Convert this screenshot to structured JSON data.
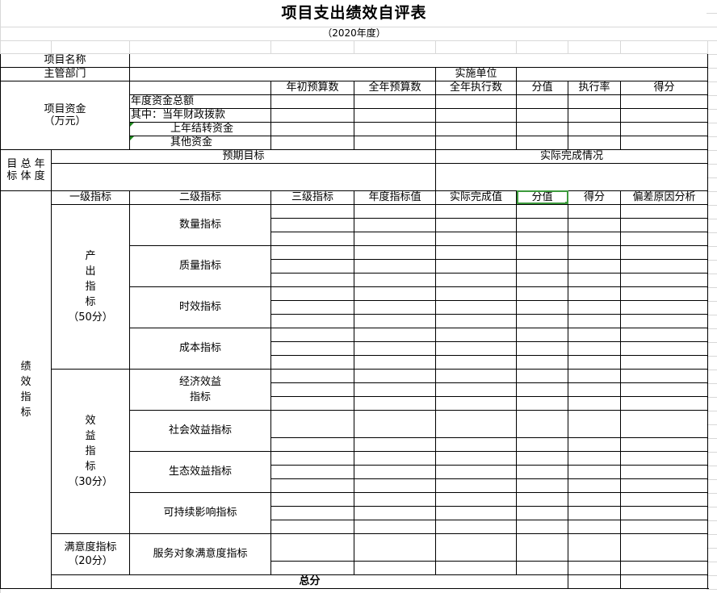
{
  "title": "项目支出绩效自评表",
  "subtitle": "（2020年度）",
  "project_name_label": "项目名称",
  "department_label": "主管部门",
  "implementing_unit_label": "实施单位",
  "funds": {
    "label_line1": "项目资金",
    "label_line2": "（万元）",
    "headers": [
      "年初预算数",
      "全年预算数",
      "全年执行数",
      "分值",
      "执行率",
      "得分"
    ],
    "rows": [
      "年度资金总额",
      "其中：当年财政拨款",
      "上年结转资金",
      "其他资金"
    ]
  },
  "goal": {
    "label_line1": "目 总 年",
    "label_line2": "标 体 度",
    "expected": "预期目标",
    "actual": "实际完成情况"
  },
  "indicators": {
    "side_label": [
      "绩",
      "效",
      "指",
      "标"
    ],
    "headers": [
      "一级指标",
      "二级指标",
      "三级指标",
      "年度指标值",
      "实际完成值",
      "分值",
      "得分",
      "偏差原因分析"
    ],
    "selected_header": "分值",
    "level1": [
      {
        "chars": [
          "产",
          "出",
          "指",
          "标"
        ],
        "score": "（50分）",
        "level2": [
          "数量指标",
          "质量指标",
          "时效指标",
          "成本指标"
        ]
      },
      {
        "chars": [
          "效",
          "益",
          "指",
          "标"
        ],
        "score": "（30分）",
        "level2": [
          "经济效益指标",
          "社会效益指标",
          "生态效益指标",
          "可持续影响指标"
        ]
      },
      {
        "chars": [
          "满意度指标"
        ],
        "score": "（20分）",
        "level2": [
          "服务对象满意度指标"
        ]
      }
    ]
  },
  "total_label": "总分",
  "colors": {
    "selection": "#3c9a3c",
    "grid": "#d8d8d8",
    "border": "#000000"
  }
}
